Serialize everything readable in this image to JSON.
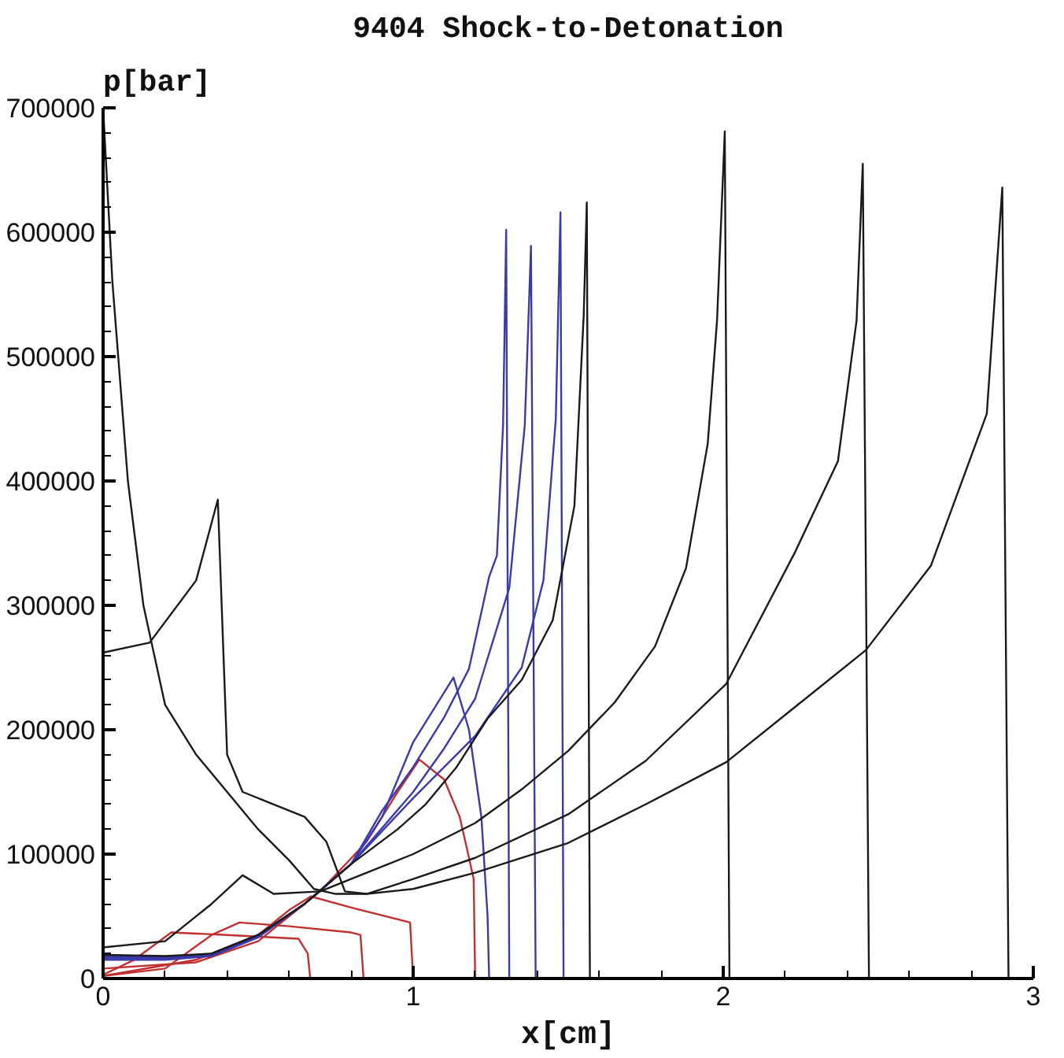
{
  "chart_data": {
    "type": "line",
    "title": "9404 Shock-to-Detonation",
    "xlabel": "x[cm]",
    "ylabel": "p[bar]",
    "xlim": [
      0,
      3
    ],
    "ylim": [
      0,
      700000
    ],
    "xticks": [
      0,
      {
        "value": 0.2,
        "label": null
      },
      {
        "value": 0.4,
        "label": null
      },
      {
        "value": 0.6,
        "label": null
      },
      {
        "value": 0.8,
        "label": null
      },
      1,
      {
        "value": 1.2,
        "label": null
      },
      {
        "value": 1.4,
        "label": null
      },
      {
        "value": 1.6,
        "label": null
      },
      {
        "value": 1.8,
        "label": null
      },
      2,
      {
        "value": 2.2,
        "label": null
      },
      {
        "value": 2.4,
        "label": null
      },
      {
        "value": 2.6,
        "label": null
      },
      {
        "value": 2.8,
        "label": null
      },
      3
    ],
    "yticks": [
      0,
      100000,
      200000,
      300000,
      400000,
      500000,
      600000,
      700000,
      {
        "value": 20000,
        "label": null
      },
      {
        "value": 40000,
        "label": null
      },
      {
        "value": 60000,
        "label": null
      },
      {
        "value": 80000,
        "label": null
      },
      {
        "value": 120000,
        "label": null
      },
      {
        "value": 140000,
        "label": null
      },
      {
        "value": 160000,
        "label": null
      },
      {
        "value": 180000,
        "label": null
      },
      {
        "value": 220000,
        "label": null
      },
      {
        "value": 240000,
        "label": null
      },
      {
        "value": 260000,
        "label": null
      },
      {
        "value": 280000,
        "label": null
      },
      {
        "value": 320000,
        "label": null
      },
      {
        "value": 340000,
        "label": null
      },
      {
        "value": 360000,
        "label": null
      },
      {
        "value": 380000,
        "label": null
      },
      {
        "value": 420000,
        "label": null
      },
      {
        "value": 440000,
        "label": null
      },
      {
        "value": 460000,
        "label": null
      },
      {
        "value": 480000,
        "label": null
      },
      {
        "value": 520000,
        "label": null
      },
      {
        "value": 540000,
        "label": null
      },
      {
        "value": 560000,
        "label": null
      },
      {
        "value": 580000,
        "label": null
      },
      {
        "value": 620000,
        "label": null
      },
      {
        "value": 640000,
        "label": null
      },
      {
        "value": 660000,
        "label": null
      },
      {
        "value": 680000,
        "label": null
      }
    ],
    "grid": false,
    "marker": "none",
    "line_style": "solid",
    "series": [
      {
        "color": "#c03030",
        "x": [
          0,
          0.1,
          0.22,
          0.4,
          0.63,
          0.66,
          0.668
        ],
        "values": [
          3000,
          15000,
          37000,
          35000,
          32000,
          20000,
          0
        ]
      },
      {
        "color": "#c03030",
        "x": [
          0,
          0.2,
          0.35,
          0.44,
          0.6,
          0.8,
          0.83,
          0.84
        ],
        "values": [
          2000,
          8000,
          35000,
          45000,
          42000,
          37000,
          35000,
          0
        ]
      },
      {
        "color": "#c03030",
        "x": [
          0,
          0.3,
          0.5,
          0.6,
          0.67,
          0.8,
          0.99,
          1.0
        ],
        "values": [
          2000,
          15000,
          35000,
          55000,
          66000,
          57000,
          45000,
          0
        ]
      },
      {
        "color": "#c03030",
        "x": [
          0,
          0.3,
          0.5,
          0.7,
          0.85,
          0.95,
          1.02,
          1.1,
          1.15,
          1.18,
          1.195,
          1.2
        ],
        "values": [
          8000,
          13000,
          30000,
          70000,
          110000,
          150000,
          176000,
          160000,
          130000,
          97000,
          80000,
          0
        ]
      },
      {
        "color": "#3a3aaa",
        "x": [
          0,
          0.2,
          0.35,
          0.5,
          0.65,
          0.8,
          0.9,
          1.0,
          1.13,
          1.18,
          1.22,
          1.24,
          1.245
        ],
        "values": [
          15000,
          15000,
          18000,
          33000,
          60000,
          92000,
          130000,
          190000,
          242000,
          200000,
          130000,
          50000,
          0
        ]
      },
      {
        "color": "#3a3aaa",
        "x": [
          0,
          0.2,
          0.35,
          0.5,
          0.65,
          0.8,
          0.9,
          1.0,
          1.1,
          1.18,
          1.245,
          1.27,
          1.29,
          1.3,
          1.31
        ],
        "values": [
          16000,
          16000,
          19000,
          34000,
          60000,
          92000,
          135000,
          170000,
          210000,
          249000,
          323000,
          340000,
          445000,
          602000,
          0
        ]
      },
      {
        "color": "#3a3aaa",
        "x": [
          0,
          0.2,
          0.35,
          0.5,
          0.65,
          0.8,
          1.0,
          1.1,
          1.2,
          1.31,
          1.36,
          1.38,
          1.395
        ],
        "values": [
          17000,
          17000,
          19000,
          34000,
          60000,
          92000,
          150000,
          185000,
          225000,
          314000,
          445000,
          589000,
          0
        ]
      },
      {
        "color": "#3a3aaa",
        "x": [
          0,
          0.2,
          0.35,
          0.5,
          0.65,
          0.8,
          1.0,
          1.2,
          1.35,
          1.42,
          1.46,
          1.475,
          1.485
        ],
        "values": [
          18000,
          17000,
          20000,
          35000,
          60000,
          92000,
          145000,
          195000,
          250000,
          320000,
          450000,
          616000,
          0
        ]
      },
      {
        "color": "#1a1a1a",
        "x": [
          0,
          0.2,
          0.35,
          0.5,
          0.65,
          0.8,
          0.95,
          1.04,
          1.14,
          1.24,
          1.35,
          1.45,
          1.52,
          1.55,
          1.56,
          1.57
        ],
        "values": [
          19000,
          18000,
          20000,
          35000,
          60000,
          92000,
          120000,
          140000,
          170000,
          209000,
          240000,
          288000,
          380000,
          533000,
          624000,
          0
        ]
      },
      {
        "color": "#1a1a1a",
        "x": [
          0,
          0.2,
          0.35,
          0.45,
          0.55,
          0.7,
          0.85,
          1.0,
          1.2,
          1.35,
          1.5,
          1.65,
          1.78,
          1.88,
          1.95,
          1.98,
          2.005,
          2.02
        ],
        "values": [
          25000,
          30000,
          60000,
          83000,
          68000,
          70000,
          85000,
          100000,
          125000,
          152000,
          183000,
          222000,
          267000,
          330000,
          430000,
          529000,
          681000,
          0
        ]
      },
      {
        "color": "#1a1a1a",
        "x": [
          0,
          0.15,
          0.3,
          0.37,
          0.4,
          0.45,
          0.55,
          0.65,
          0.72,
          0.78,
          0.85,
          1.0,
          1.2,
          1.5,
          1.75,
          2.01,
          2.23,
          2.37,
          2.43,
          2.45,
          2.47
        ],
        "values": [
          262000,
          270000,
          320000,
          385000,
          180000,
          150000,
          140000,
          130000,
          110000,
          70000,
          68000,
          80000,
          97000,
          132000,
          175000,
          237000,
          342000,
          416000,
          529000,
          655000,
          0
        ]
      },
      {
        "color": "#1a1a1a",
        "x": [
          0,
          0.03,
          0.08,
          0.13,
          0.2,
          0.3,
          0.4,
          0.5,
          0.6,
          0.68,
          0.75,
          0.85,
          1.0,
          1.2,
          1.5,
          1.75,
          2.01,
          2.3,
          2.46,
          2.67,
          2.85,
          2.9,
          2.92
        ],
        "values": [
          700000,
          560000,
          400000,
          300000,
          220000,
          180000,
          150000,
          120000,
          95000,
          72000,
          68000,
          68000,
          72000,
          85000,
          109000,
          140000,
          174000,
          232000,
          264000,
          332000,
          454000,
          636000,
          0
        ]
      }
    ]
  }
}
